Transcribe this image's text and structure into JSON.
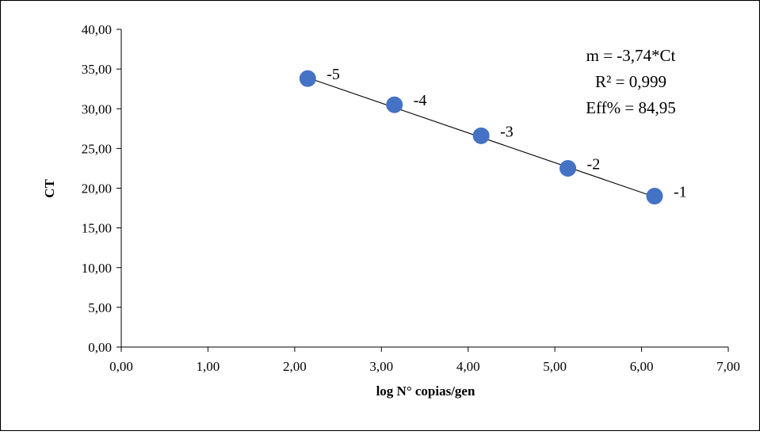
{
  "chart_data": {
    "type": "scatter",
    "xlabel": "log N° copias/gen",
    "ylabel": "CT",
    "xlim": [
      0,
      7
    ],
    "ylim": [
      0,
      40
    ],
    "x_ticks": [
      "0,00",
      "1,00",
      "2,00",
      "3,00",
      "4,00",
      "5,00",
      "6,00",
      "7,00"
    ],
    "y_ticks": [
      "0,00",
      "5,00",
      "10,00",
      "15,00",
      "20,00",
      "25,00",
      "30,00",
      "35,00",
      "40,00"
    ],
    "points": [
      {
        "x": 2.15,
        "y": 33.8,
        "label": "-5"
      },
      {
        "x": 3.15,
        "y": 30.5,
        "label": "-4"
      },
      {
        "x": 4.15,
        "y": 26.6,
        "label": "-3"
      },
      {
        "x": 5.15,
        "y": 22.5,
        "label": "-2"
      },
      {
        "x": 6.15,
        "y": 19.0,
        "label": "-1"
      }
    ],
    "trendline": {
      "from": [
        2.15,
        33.9
      ],
      "to": [
        6.15,
        18.9
      ]
    },
    "annotations": [
      "m = -3,74*Ct",
      "R² = 0,999",
      "Eff% = 84,95"
    ],
    "marker_color": "#4472C4",
    "grid": false,
    "legend": "none"
  }
}
